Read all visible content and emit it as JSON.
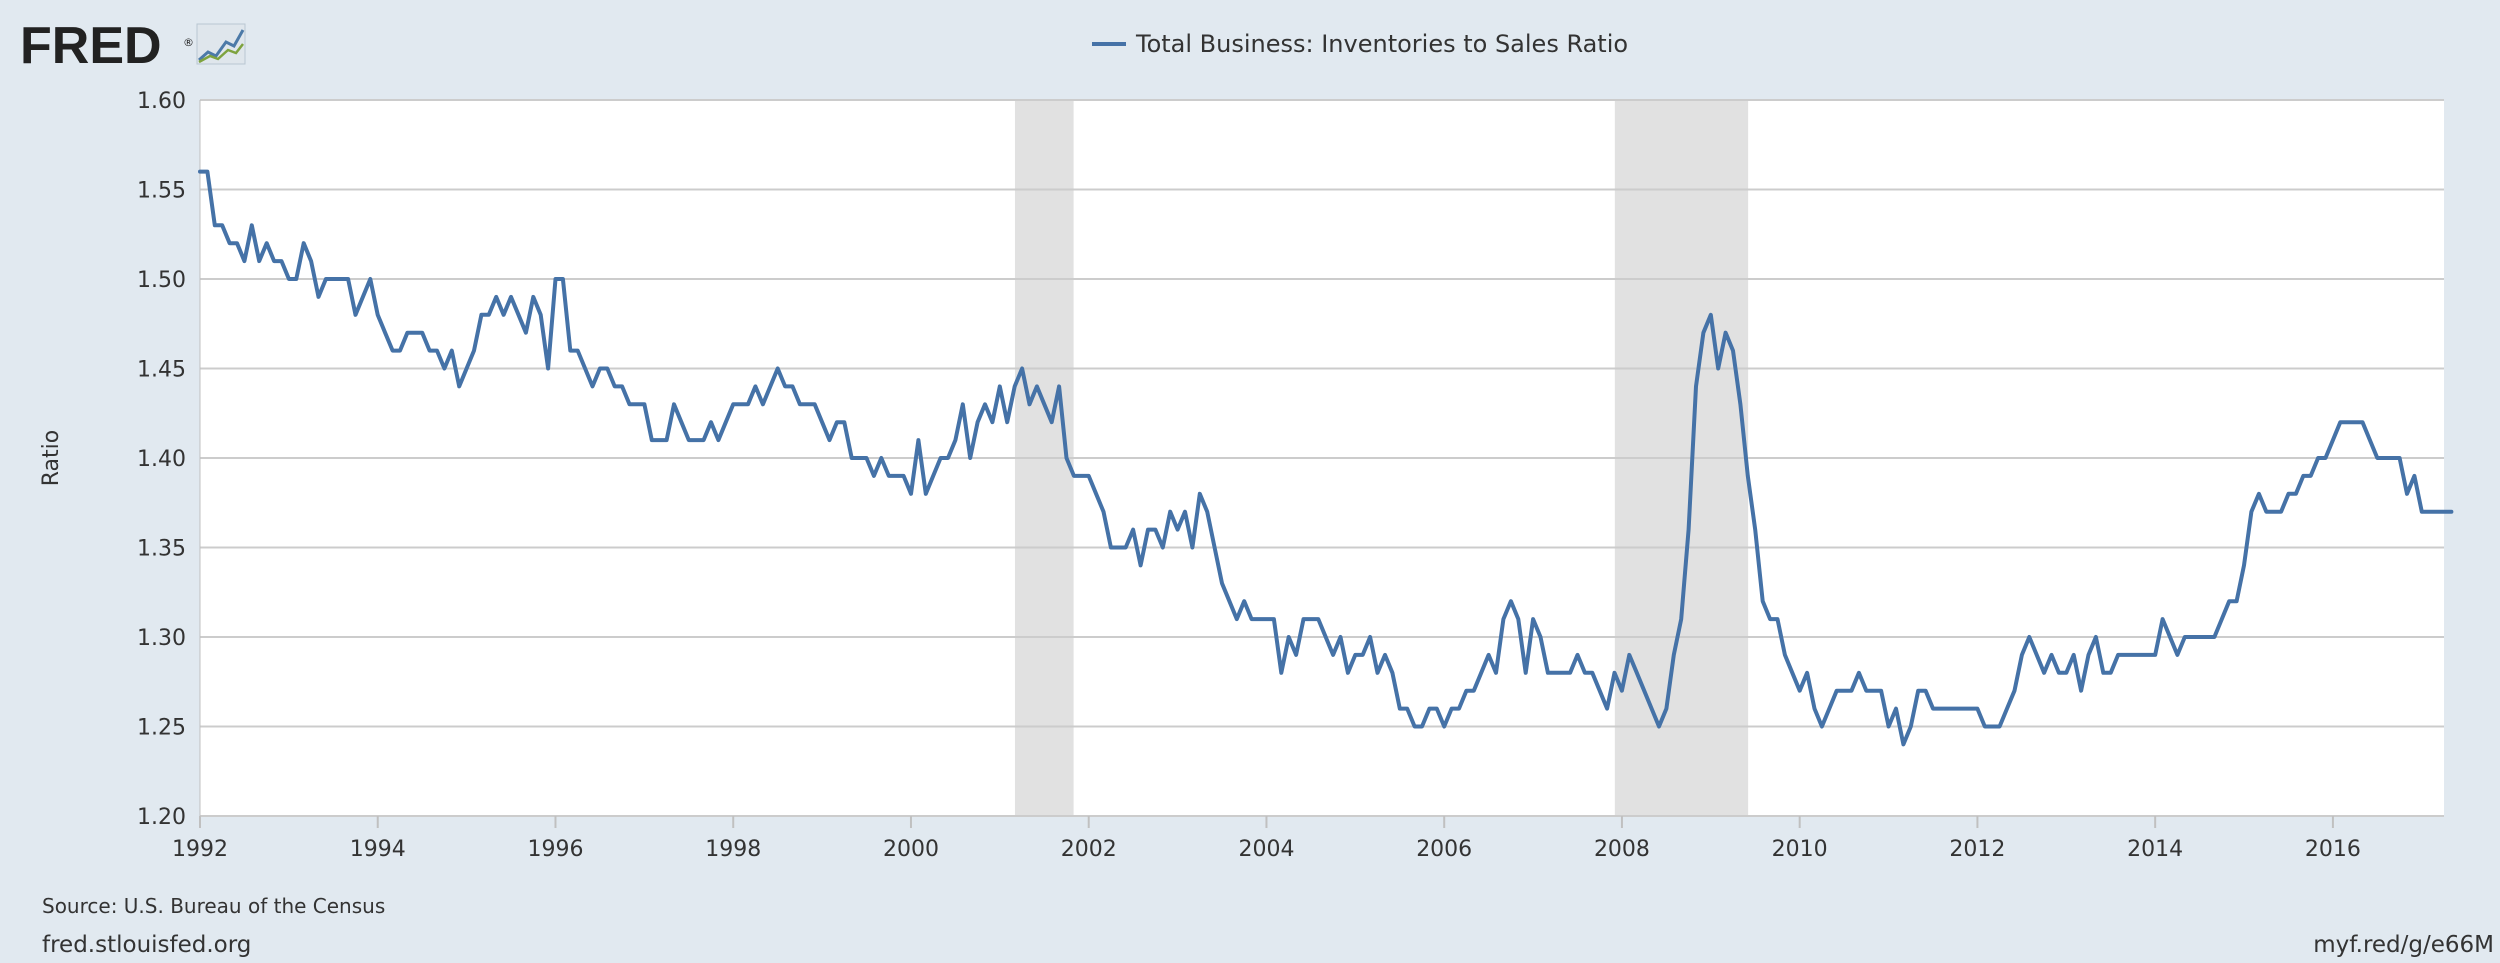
{
  "header": {
    "logo_text": "FRED",
    "logo_mark": "®"
  },
  "footer": {
    "source": "Source: U.S. Bureau of the Census",
    "site": "fred.stlouisfed.org",
    "short_url": "myf.red/g/e66M"
  },
  "colors": {
    "line": "#4572a7",
    "recession": "#e1e1e1",
    "grid": "#cccccc",
    "background": "#e1e9f0",
    "plot_background": "#ffffff"
  },
  "chart_data": {
    "type": "line",
    "title": "",
    "legend_position": "top-center",
    "series": [
      {
        "name": "Total Business: Inventories to Sales Ratio",
        "start": "1992-01",
        "frequency": "monthly",
        "values": [
          1.56,
          1.56,
          1.53,
          1.53,
          1.52,
          1.52,
          1.51,
          1.53,
          1.51,
          1.52,
          1.51,
          1.51,
          1.5,
          1.5,
          1.52,
          1.51,
          1.49,
          1.5,
          1.5,
          1.5,
          1.5,
          1.48,
          1.49,
          1.5,
          1.48,
          1.47,
          1.46,
          1.46,
          1.47,
          1.47,
          1.47,
          1.46,
          1.46,
          1.45,
          1.46,
          1.44,
          1.45,
          1.46,
          1.48,
          1.48,
          1.49,
          1.48,
          1.49,
          1.48,
          1.47,
          1.49,
          1.48,
          1.45,
          1.5,
          1.5,
          1.46,
          1.46,
          1.45,
          1.44,
          1.45,
          1.45,
          1.44,
          1.44,
          1.43,
          1.43,
          1.43,
          1.41,
          1.41,
          1.41,
          1.43,
          1.42,
          1.41,
          1.41,
          1.41,
          1.42,
          1.41,
          1.42,
          1.43,
          1.43,
          1.43,
          1.44,
          1.43,
          1.44,
          1.45,
          1.44,
          1.44,
          1.43,
          1.43,
          1.43,
          1.42,
          1.41,
          1.42,
          1.42,
          1.4,
          1.4,
          1.4,
          1.39,
          1.4,
          1.39,
          1.39,
          1.39,
          1.38,
          1.41,
          1.38,
          1.39,
          1.4,
          1.4,
          1.41,
          1.43,
          1.4,
          1.42,
          1.43,
          1.42,
          1.44,
          1.42,
          1.44,
          1.45,
          1.43,
          1.44,
          1.43,
          1.42,
          1.44,
          1.4,
          1.39,
          1.39,
          1.39,
          1.38,
          1.37,
          1.35,
          1.35,
          1.35,
          1.36,
          1.34,
          1.36,
          1.36,
          1.35,
          1.37,
          1.36,
          1.37,
          1.35,
          1.38,
          1.37,
          1.35,
          1.33,
          1.32,
          1.31,
          1.32,
          1.31,
          1.31,
          1.31,
          1.31,
          1.28,
          1.3,
          1.29,
          1.31,
          1.31,
          1.31,
          1.3,
          1.29,
          1.3,
          1.28,
          1.29,
          1.29,
          1.3,
          1.28,
          1.29,
          1.28,
          1.26,
          1.26,
          1.25,
          1.25,
          1.26,
          1.26,
          1.25,
          1.26,
          1.26,
          1.27,
          1.27,
          1.28,
          1.29,
          1.28,
          1.31,
          1.32,
          1.31,
          1.28,
          1.31,
          1.3,
          1.28,
          1.28,
          1.28,
          1.28,
          1.29,
          1.28,
          1.28,
          1.27,
          1.26,
          1.28,
          1.27,
          1.29,
          1.28,
          1.27,
          1.26,
          1.25,
          1.26,
          1.29,
          1.31,
          1.36,
          1.44,
          1.47,
          1.48,
          1.45,
          1.47,
          1.46,
          1.43,
          1.39,
          1.36,
          1.32,
          1.31,
          1.31,
          1.29,
          1.28,
          1.27,
          1.28,
          1.26,
          1.25,
          1.26,
          1.27,
          1.27,
          1.27,
          1.28,
          1.27,
          1.27,
          1.27,
          1.25,
          1.26,
          1.24,
          1.25,
          1.27,
          1.27,
          1.26,
          1.26,
          1.26,
          1.26,
          1.26,
          1.26,
          1.26,
          1.25,
          1.25,
          1.25,
          1.26,
          1.27,
          1.29,
          1.3,
          1.29,
          1.28,
          1.29,
          1.28,
          1.28,
          1.29,
          1.27,
          1.29,
          1.3,
          1.28,
          1.28,
          1.29,
          1.29,
          1.29,
          1.29,
          1.29,
          1.29,
          1.31,
          1.3,
          1.29,
          1.3,
          1.3,
          1.3,
          1.3,
          1.3,
          1.31,
          1.32,
          1.32,
          1.34,
          1.37,
          1.38,
          1.37,
          1.37,
          1.37,
          1.38,
          1.38,
          1.39,
          1.39,
          1.4,
          1.4,
          1.41,
          1.42,
          1.42,
          1.42,
          1.42,
          1.41,
          1.4,
          1.4,
          1.4,
          1.4,
          1.38,
          1.39,
          1.37,
          1.37,
          1.37,
          1.37,
          1.37
        ]
      }
    ],
    "recessions": [
      {
        "start": 2001.17,
        "end": 2001.83
      },
      {
        "start": 2007.92,
        "end": 2009.42
      }
    ],
    "xlim": [
      1992.0,
      2017.25
    ],
    "ylim": [
      1.2,
      1.6
    ],
    "x_ticks": [
      1992,
      1994,
      1996,
      1998,
      2000,
      2002,
      2004,
      2006,
      2008,
      2010,
      2012,
      2014,
      2016
    ],
    "x_tick_labels": [
      "1992",
      "1994",
      "1996",
      "1998",
      "2000",
      "2002",
      "2004",
      "2006",
      "2008",
      "2010",
      "2012",
      "2014",
      "2016"
    ],
    "y_ticks": [
      1.2,
      1.25,
      1.3,
      1.35,
      1.4,
      1.45,
      1.5,
      1.55,
      1.6
    ],
    "y_tick_labels": [
      "1.20",
      "1.25",
      "1.30",
      "1.35",
      "1.40",
      "1.45",
      "1.50",
      "1.55",
      "1.60"
    ],
    "xlabel": "",
    "ylabel": "Ratio",
    "grid": true
  }
}
